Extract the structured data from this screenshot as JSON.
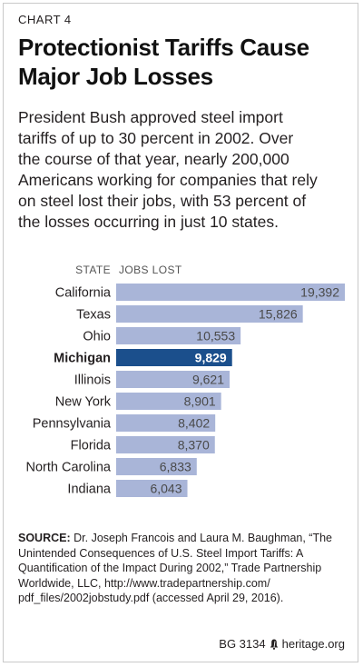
{
  "chart_label": "CHART 4",
  "title_lines": [
    "Protectionist Tariffs Cause",
    "Major Job Losses"
  ],
  "subtitle_lines": [
    "President Bush approved steel import",
    "tariffs of up to 30 percent in 2002. Over",
    "the course of that year, nearly 200,000",
    "Americans working for companies that rely",
    "on steel lost their jobs, with 53 percent of",
    "the losses occurring in just 10 states."
  ],
  "headers": {
    "state": "STATE",
    "jobs": "JOBS LOST"
  },
  "chart_data": {
    "type": "bar",
    "orientation": "horizontal",
    "categories": [
      "California",
      "Texas",
      "Ohio",
      "Michigan",
      "Illinois",
      "New York",
      "Pennsylvania",
      "Florida",
      "North Carolina",
      "Indiana"
    ],
    "values": [
      19392,
      15826,
      10553,
      9829,
      9621,
      8901,
      8402,
      8370,
      6833,
      6043
    ],
    "value_labels": [
      "19,392",
      "15,826",
      "10,553",
      "9,829",
      "9,621",
      "8,901",
      "8,402",
      "8,370",
      "6,833",
      "6,043"
    ],
    "highlight": "Michigan",
    "colors": {
      "bar": "#a9b5d8",
      "highlight": "#1b4f8c",
      "label_on_bar": "#4a4a4a",
      "label_on_highlight": "#ffffff"
    },
    "title": "",
    "xlabel": "",
    "ylabel": ""
  },
  "source": {
    "prefix": "SOURCE:",
    "lines": [
      " Dr. Joseph Francois and Laura M. Baughman, “The",
      "Unintended Consequences of U.S. Steel Import Tariffs: A",
      "Quantification of the Impact During 2002,” Trade Partnership",
      "Worldwide, LLC, http://www.tradepartnership.com/",
      "pdf_files/2002jobstudy.pdf (accessed April 29, 2016)."
    ]
  },
  "footer": {
    "report": "BG 3134",
    "site": "heritage.org",
    "icon": "liberty-bell-icon"
  }
}
